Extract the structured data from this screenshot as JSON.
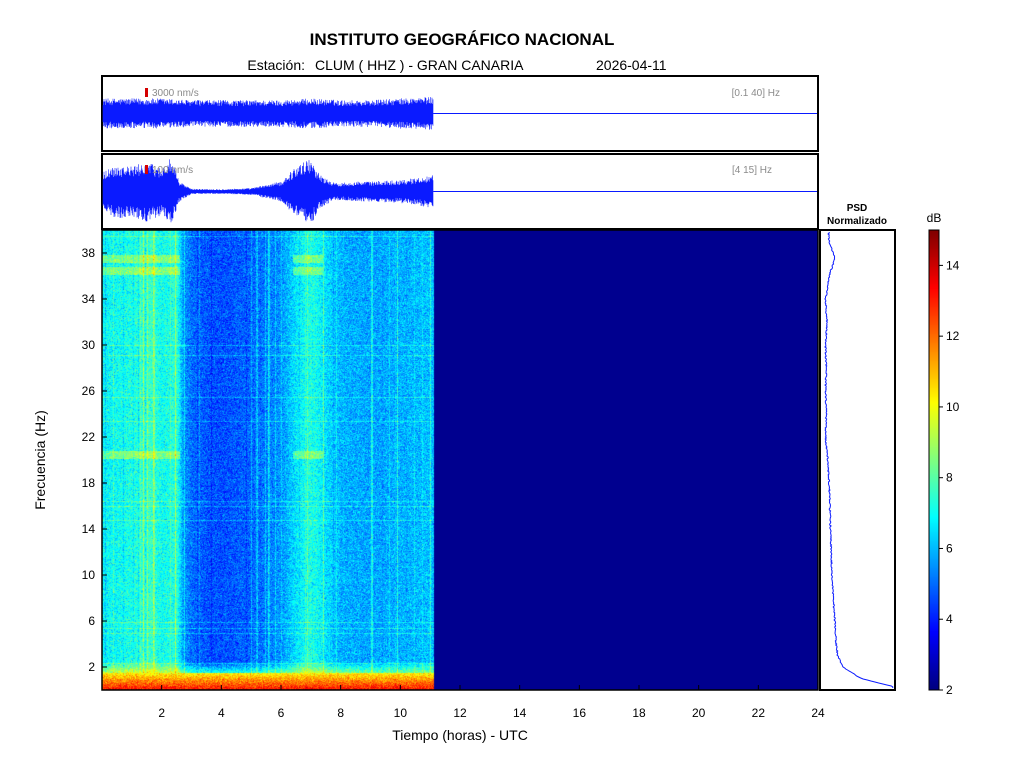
{
  "header": {
    "title": "INSTITUTO GEOGRÁFICO NACIONAL",
    "station_prefix": "Estación:",
    "station": "CLUM ( HHZ ) - GRAN CANARIA",
    "date": "2026-04-11"
  },
  "colors": {
    "trace": "#0a1aff",
    "frame": "#000000",
    "scale_marker": "#d40000",
    "no_data": "#00008f"
  },
  "chart_data": [
    {
      "type": "line",
      "name": "trace-broadband",
      "scale_label": "3000 nm/s",
      "band_label": "[0.1 40] Hz",
      "x_range": [
        0,
        24
      ],
      "data_end_hour": 11.1,
      "amplitude_envelope": {
        "hours": [
          0,
          1,
          2,
          3,
          4,
          5,
          6,
          7,
          8,
          9,
          10,
          11.1
        ],
        "rel": [
          0.45,
          0.45,
          0.45,
          0.4,
          0.4,
          0.4,
          0.4,
          0.45,
          0.4,
          0.4,
          0.45,
          0.5
        ]
      }
    },
    {
      "type": "line",
      "name": "trace-filtered",
      "scale_label": "100 nm/s",
      "band_label": "[4 15] Hz",
      "x_range": [
        0,
        24
      ],
      "data_end_hour": 11.1,
      "amplitude_envelope": {
        "hours": [
          0,
          0.5,
          1,
          1.5,
          2,
          2.3,
          2.6,
          3,
          4,
          5,
          6,
          6.5,
          7,
          7.3,
          7.8,
          8.5,
          9,
          10,
          10.5,
          11.1
        ],
        "rel": [
          0.6,
          0.8,
          0.75,
          0.9,
          0.7,
          1.0,
          0.3,
          0.08,
          0.07,
          0.1,
          0.3,
          0.75,
          1.0,
          0.5,
          0.25,
          0.3,
          0.3,
          0.35,
          0.4,
          0.5
        ]
      }
    },
    {
      "type": "heatmap",
      "name": "spectrogram",
      "xlabel": "Tiempo (horas) - UTC",
      "ylabel": "Frecuencia  (Hz)",
      "xlim": [
        0,
        24
      ],
      "ylim": [
        0,
        40
      ],
      "xticks": [
        2,
        4,
        6,
        8,
        10,
        12,
        14,
        16,
        18,
        20,
        22,
        24
      ],
      "yticks": [
        2,
        6,
        10,
        14,
        18,
        22,
        26,
        30,
        34,
        38
      ],
      "data_end_hour": 11.1,
      "colorbar": {
        "label": "dB",
        "range": [
          2,
          15
        ],
        "ticks": [
          2,
          4,
          6,
          8,
          10,
          12,
          14
        ],
        "colormap": "jet"
      },
      "background_db_by_hour": {
        "hours": [
          0,
          1,
          1.6,
          2,
          2.5,
          2.7,
          3,
          3.5,
          4,
          5,
          6,
          6.5,
          7,
          7.5,
          8,
          9,
          10,
          11.1
        ],
        "db": [
          6.8,
          7.2,
          7.6,
          7.0,
          7.4,
          5.6,
          5.0,
          4.7,
          4.6,
          4.9,
          5.5,
          6.6,
          7.3,
          6.5,
          5.9,
          5.7,
          5.9,
          6.1
        ]
      },
      "low_frequency_band": {
        "freq_max": 1.5,
        "db": 12.5
      },
      "harmonic_lines_hz": [
        20.5,
        37.5,
        36.5
      ]
    },
    {
      "type": "line",
      "name": "psd",
      "title_line1": "PSD",
      "title_line2": "Normalizado",
      "freqs": [
        0.3,
        1,
        2,
        3,
        4,
        6,
        8,
        10,
        12,
        14,
        16,
        18,
        20,
        22,
        24,
        26,
        28,
        30,
        32,
        34,
        36,
        37.5,
        39,
        40
      ],
      "norm_values": [
        1.0,
        0.55,
        0.3,
        0.22,
        0.2,
        0.18,
        0.16,
        0.14,
        0.13,
        0.12,
        0.11,
        0.1,
        0.08,
        0.05,
        0.06,
        0.05,
        0.06,
        0.05,
        0.07,
        0.05,
        0.1,
        0.18,
        0.1,
        0.09
      ]
    }
  ]
}
